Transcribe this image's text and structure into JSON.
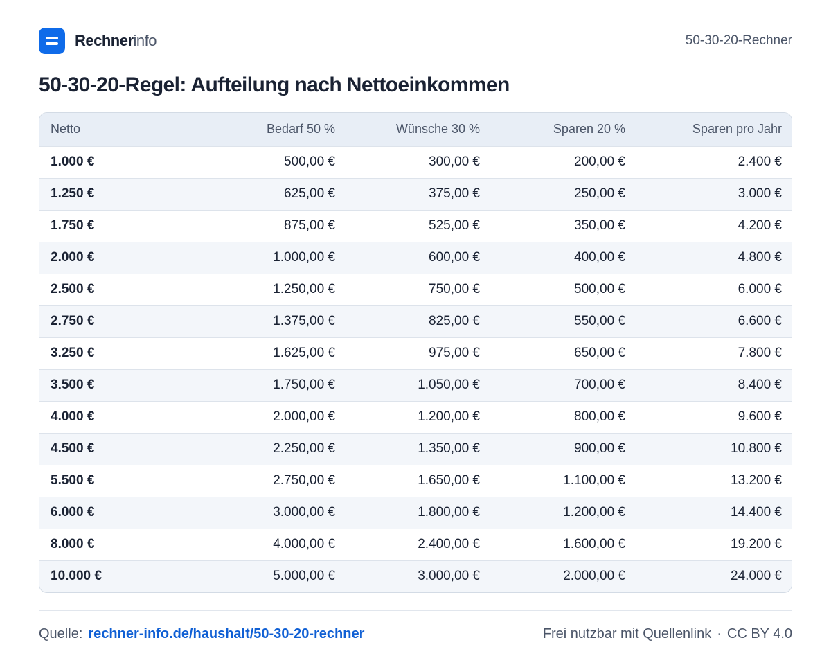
{
  "brand": {
    "name_bold": "Rechner",
    "name_light": "info"
  },
  "header": {
    "right_label": "50-30-20-Rechner"
  },
  "title": "50-30-20-Regel: Aufteilung nach Nettoeinkommen",
  "table": {
    "columns": [
      "Netto",
      "Bedarf 50 %",
      "Wünsche 30 %",
      "Sparen 20 %",
      "Sparen pro Jahr"
    ],
    "rows": [
      [
        "1.000 €",
        "500,00 €",
        "300,00 €",
        "200,00 €",
        "2.400 €"
      ],
      [
        "1.250 €",
        "625,00 €",
        "375,00 €",
        "250,00 €",
        "3.000 €"
      ],
      [
        "1.750 €",
        "875,00 €",
        "525,00 €",
        "350,00 €",
        "4.200 €"
      ],
      [
        "2.000 €",
        "1.000,00 €",
        "600,00 €",
        "400,00 €",
        "4.800 €"
      ],
      [
        "2.500 €",
        "1.250,00 €",
        "750,00 €",
        "500,00 €",
        "6.000 €"
      ],
      [
        "2.750 €",
        "1.375,00 €",
        "825,00 €",
        "550,00 €",
        "6.600 €"
      ],
      [
        "3.250 €",
        "1.625,00 €",
        "975,00 €",
        "650,00 €",
        "7.800 €"
      ],
      [
        "3.500 €",
        "1.750,00 €",
        "1.050,00 €",
        "700,00 €",
        "8.400 €"
      ],
      [
        "4.000 €",
        "2.000,00 €",
        "1.200,00 €",
        "800,00 €",
        "9.600 €"
      ],
      [
        "4.500 €",
        "2.250,00 €",
        "1.350,00 €",
        "900,00 €",
        "10.800 €"
      ],
      [
        "5.500 €",
        "2.750,00 €",
        "1.650,00 €",
        "1.100,00 €",
        "13.200 €"
      ],
      [
        "6.000 €",
        "3.000,00 €",
        "1.800,00 €",
        "1.200,00 €",
        "14.400 €"
      ],
      [
        "8.000 €",
        "4.000,00 €",
        "2.400,00 €",
        "1.600,00 €",
        "19.200 €"
      ],
      [
        "10.000 €",
        "5.000,00 €",
        "3.000,00 €",
        "2.000,00 €",
        "24.000 €"
      ]
    ]
  },
  "footer": {
    "source_label": "Quelle:",
    "source_link": "rechner-info.de/haushalt/50-30-20-rechner",
    "license_text": "Frei nutzbar mit Quellenlink",
    "separator": "·",
    "license": "CC BY 4.0"
  },
  "colors": {
    "accent": "#0f6be9",
    "link": "#0f5fd4",
    "header_bg": "#e8eef6",
    "alt_row": "#f3f6fa"
  },
  "icons": {
    "logo": "rechnerinfo-logo-icon"
  }
}
